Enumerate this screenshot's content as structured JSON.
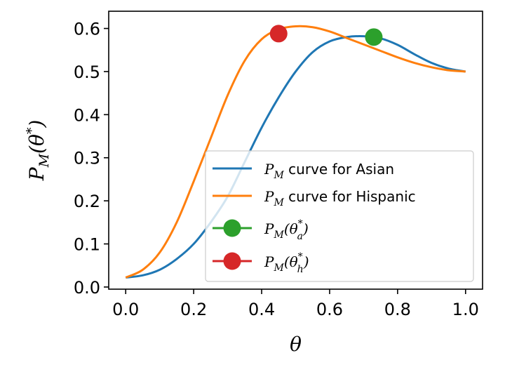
{
  "chart_data": {
    "type": "line",
    "title": "",
    "xlabel": "θ",
    "ylabel": "P_M(θ*)",
    "xlim": [
      -0.05,
      1.05
    ],
    "ylim": [
      -0.005,
      0.64
    ],
    "xticks": [
      0.0,
      0.2,
      0.4,
      0.6,
      0.8,
      1.0
    ],
    "yticks": [
      0.0,
      0.1,
      0.2,
      0.3,
      0.4,
      0.5,
      0.6
    ],
    "xtick_labels": [
      "0.0",
      "0.2",
      "0.4",
      "0.6",
      "0.8",
      "1.0"
    ],
    "ytick_labels": [
      "0.0",
      "0.1",
      "0.2",
      "0.3",
      "0.4",
      "0.5",
      "0.6"
    ],
    "grid": false,
    "legend_position": "lower-right",
    "series": [
      {
        "name": "P_M curve for Asian",
        "legend_math": "P",
        "legend_sub": "M",
        "legend_rest": " curve for Asian",
        "color": "#1f77b4",
        "x": [
          0.0,
          0.05,
          0.1,
          0.15,
          0.2,
          0.25,
          0.3,
          0.35,
          0.4,
          0.45,
          0.5,
          0.55,
          0.6,
          0.65,
          0.7,
          0.75,
          0.8,
          0.85,
          0.9,
          0.95,
          1.0
        ],
        "y": [
          0.022,
          0.027,
          0.04,
          0.065,
          0.1,
          0.15,
          0.21,
          0.29,
          0.37,
          0.44,
          0.5,
          0.545,
          0.57,
          0.58,
          0.582,
          0.577,
          0.562,
          0.54,
          0.52,
          0.507,
          0.5
        ]
      },
      {
        "name": "P_M curve for Hispanic",
        "legend_math": "P",
        "legend_sub": "M",
        "legend_rest": " curve for Hispanic",
        "color": "#ff7f0e",
        "x": [
          0.0,
          0.05,
          0.1,
          0.15,
          0.2,
          0.25,
          0.3,
          0.35,
          0.4,
          0.45,
          0.5,
          0.55,
          0.6,
          0.65,
          0.7,
          0.75,
          0.8,
          0.85,
          0.9,
          0.95,
          1.0
        ],
        "y": [
          0.022,
          0.04,
          0.08,
          0.15,
          0.245,
          0.345,
          0.445,
          0.525,
          0.575,
          0.598,
          0.605,
          0.603,
          0.593,
          0.578,
          0.563,
          0.548,
          0.533,
          0.52,
          0.51,
          0.503,
          0.5
        ]
      }
    ],
    "markers": [
      {
        "name": "P_M(θ_a*)",
        "legend_math": "P",
        "legend_sub": "M",
        "legend_open": "(θ",
        "legend_sup": "*",
        "legend_sub2": "a",
        "legend_close": ")",
        "color": "#2ca02c",
        "x": 0.73,
        "y": 0.58
      },
      {
        "name": "P_M(θ_h*)",
        "legend_math": "P",
        "legend_sub": "M",
        "legend_open": "(θ",
        "legend_sup": "*",
        "legend_sub2": "h",
        "legend_close": ")",
        "color": "#d62728",
        "x": 0.45,
        "y": 0.588
      }
    ]
  }
}
